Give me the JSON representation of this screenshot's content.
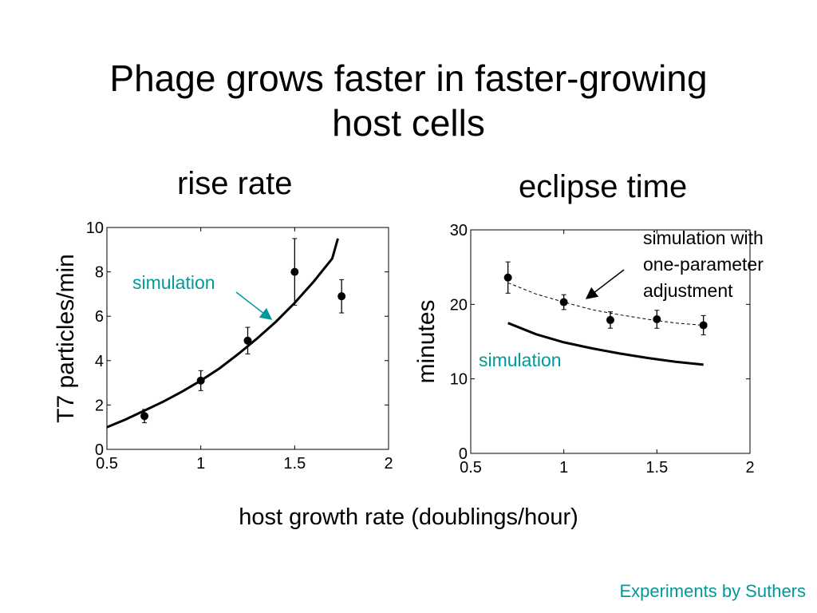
{
  "slide": {
    "title_line1": "Phage grows faster in faster-growing",
    "title_line2": "host cells",
    "shared_xlabel": "host growth rate (doublings/hour)",
    "credit": "Experiments by Suthers",
    "colors": {
      "accent": "#00999a",
      "text": "#000000"
    }
  },
  "chart_data": [
    {
      "type": "scatter",
      "title": "rise rate",
      "ylabel": "T7 particles/min",
      "xlabel": "host growth rate (doublings/hour)",
      "xlim": [
        0.5,
        2
      ],
      "ylim": [
        0,
        10
      ],
      "xticks": [
        0.5,
        1,
        1.5,
        2
      ],
      "yticks": [
        0,
        2,
        4,
        6,
        8,
        10
      ],
      "series": [
        {
          "kind": "points",
          "x": [
            0.7,
            1.0,
            1.25,
            1.5,
            1.75
          ],
          "y": [
            1.5,
            3.1,
            4.9,
            8.0,
            6.9
          ],
          "err": [
            0.3,
            0.45,
            0.6,
            1.5,
            0.75
          ]
        },
        {
          "name": "simulation",
          "kind": "line",
          "x": [
            0.5,
            0.6,
            0.7,
            0.8,
            0.9,
            1.0,
            1.1,
            1.2,
            1.3,
            1.4,
            1.5,
            1.6,
            1.7,
            1.73
          ],
          "y": [
            1.0,
            1.35,
            1.75,
            2.15,
            2.6,
            3.1,
            3.65,
            4.3,
            5.0,
            5.75,
            6.6,
            7.55,
            8.6,
            9.5
          ]
        }
      ],
      "annotations": [
        {
          "text": "simulation",
          "color": "#00999a",
          "points_to": {
            "x": 1.4,
            "y": 5.8
          }
        }
      ]
    },
    {
      "type": "scatter",
      "title": "eclipse time",
      "ylabel": "minutes",
      "xlabel": "host growth rate (doublings/hour)",
      "xlim": [
        0.5,
        2
      ],
      "ylim": [
        0,
        30
      ],
      "xticks": [
        0.5,
        1,
        1.5,
        2
      ],
      "yticks": [
        0,
        10,
        20,
        30
      ],
      "series": [
        {
          "kind": "points",
          "x": [
            0.7,
            1.0,
            1.25,
            1.5,
            1.75
          ],
          "y": [
            23.6,
            20.3,
            17.9,
            18.0,
            17.2
          ],
          "err": [
            2.1,
            1.0,
            1.1,
            1.2,
            1.3
          ]
        },
        {
          "name": "simulation with one-parameter adjustment",
          "kind": "dashed",
          "x": [
            0.7,
            0.85,
            1.0,
            1.15,
            1.3,
            1.45,
            1.6,
            1.75
          ],
          "y": [
            22.9,
            21.4,
            20.3,
            19.3,
            18.6,
            18.0,
            17.5,
            17.2
          ]
        },
        {
          "name": "simulation",
          "kind": "line",
          "x": [
            0.7,
            0.85,
            1.0,
            1.15,
            1.3,
            1.45,
            1.6,
            1.75
          ],
          "y": [
            17.5,
            16.0,
            14.9,
            14.1,
            13.4,
            12.8,
            12.3,
            11.9
          ]
        }
      ],
      "annotations": [
        {
          "text": "simulation",
          "color": "#00999a"
        },
        {
          "text_lines": [
            "simulation with",
            "one-parameter",
            "adjustment"
          ],
          "color": "#000000",
          "points_to": {
            "x": 1.12,
            "y": 20.5
          }
        }
      ]
    }
  ]
}
